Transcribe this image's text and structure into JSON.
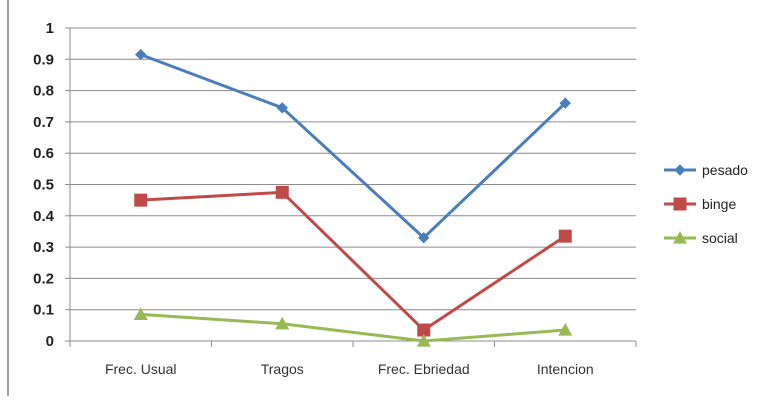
{
  "chart_data": {
    "type": "line",
    "categories": [
      "Frec. Usual",
      "Tragos",
      "Frec. Ebriedad",
      "Intencion"
    ],
    "series": [
      {
        "name": "pesado",
        "values": [
          0.915,
          0.745,
          0.33,
          0.76
        ],
        "color": "#4a7ebb",
        "marker": "diamond"
      },
      {
        "name": "binge",
        "values": [
          0.45,
          0.475,
          0.035,
          0.335
        ],
        "color": "#be4b48",
        "marker": "square"
      },
      {
        "name": "social",
        "values": [
          0.085,
          0.055,
          0.0,
          0.035
        ],
        "color": "#98b954",
        "marker": "triangle"
      }
    ],
    "yticks": [
      "0",
      "0.1",
      "0.2",
      "0.3",
      "0.4",
      "0.5",
      "0.6",
      "0.7",
      "0.8",
      "0.9",
      "1"
    ],
    "ylim": [
      0,
      1
    ],
    "grid": true,
    "legend": "right",
    "title": "",
    "xlabel": "",
    "ylabel": ""
  }
}
